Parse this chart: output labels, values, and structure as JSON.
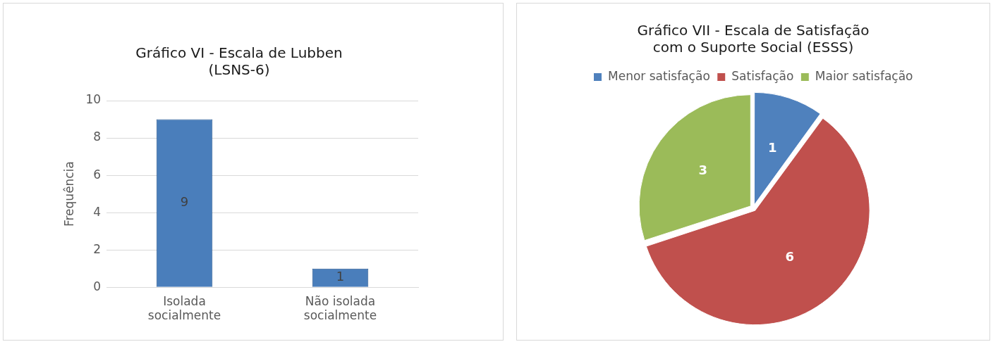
{
  "chart_data": [
    {
      "type": "bar",
      "title": "Gráfico VI - Escala de Lubben (LSNS-6)",
      "ylabel": "Frequência",
      "categories": [
        "Isolada socialmente",
        "Não isolada socialmente"
      ],
      "values": [
        9,
        1
      ],
      "color": "#4a7ebb",
      "ylim": [
        0,
        10
      ],
      "yticks": [
        0,
        2,
        4,
        6,
        8,
        10
      ],
      "grid": "y",
      "data_labels": true
    },
    {
      "type": "pie",
      "title": "Gráfico VII - Escala de Satisfação com o Suporte Social (ESSS)",
      "categories": [
        "Menor satisfação",
        "Satisfação",
        "Maior satisfação"
      ],
      "values": [
        1,
        6,
        3
      ],
      "colors": [
        "#4f81bd",
        "#c0504d",
        "#9bbb59"
      ],
      "legend": "top",
      "data_labels": true
    }
  ]
}
